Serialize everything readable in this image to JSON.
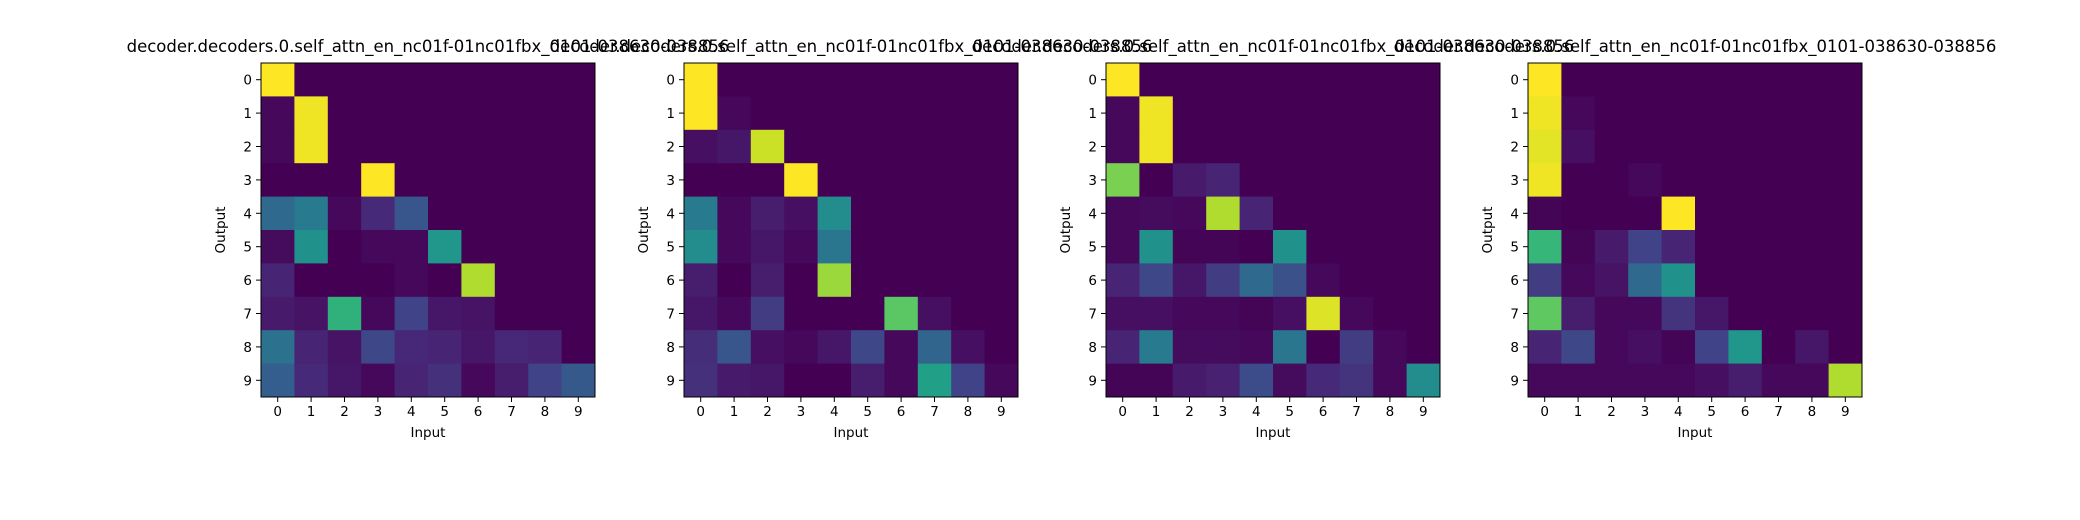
{
  "chart_data": [
    {
      "type": "heatmap",
      "title": "decoder.decoders.0.self_attn_en_nc01f-01nc01fbx_0101-038630-038856",
      "xlabel": "Input",
      "ylabel": "Output",
      "x_ticks": [
        "0",
        "1",
        "2",
        "3",
        "4",
        "5",
        "6",
        "7",
        "8",
        "9"
      ],
      "y_ticks": [
        "0",
        "1",
        "2",
        "3",
        "4",
        "5",
        "6",
        "7",
        "8",
        "9"
      ],
      "colormap": "viridis",
      "value_range": [
        0,
        1
      ],
      "values": [
        [
          1.0,
          0,
          0,
          0,
          0,
          0,
          0,
          0,
          0,
          0
        ],
        [
          0.02,
          0.98,
          0,
          0,
          0,
          0,
          0,
          0,
          0,
          0
        ],
        [
          0.02,
          0.98,
          0,
          0,
          0,
          0,
          0,
          0,
          0,
          0
        ],
        [
          0,
          0,
          0,
          1.0,
          0,
          0,
          0,
          0,
          0,
          0
        ],
        [
          0.35,
          0.42,
          0.02,
          0.12,
          0.27,
          0,
          0,
          0,
          0,
          0
        ],
        [
          0.03,
          0.5,
          0,
          0.02,
          0.02,
          0.52,
          0,
          0,
          0,
          0
        ],
        [
          0.1,
          0,
          0,
          0,
          0.02,
          0,
          0.88,
          0,
          0,
          0
        ],
        [
          0.07,
          0.05,
          0.64,
          0.02,
          0.2,
          0.06,
          0.05,
          0,
          0,
          0
        ],
        [
          0.38,
          0.1,
          0.05,
          0.22,
          0.11,
          0.1,
          0.06,
          0.11,
          0.1,
          0
        ],
        [
          0.3,
          0.12,
          0.06,
          0.02,
          0.1,
          0.14,
          0.02,
          0.08,
          0.2,
          0.28
        ]
      ]
    },
    {
      "type": "heatmap",
      "title": "decoder.decoders.0.self_attn_en_nc01f-01nc01fbx_0101-038630-038856",
      "xlabel": "Input",
      "ylabel": "Output",
      "x_ticks": [
        "0",
        "1",
        "2",
        "3",
        "4",
        "5",
        "6",
        "7",
        "8",
        "9"
      ],
      "y_ticks": [
        "0",
        "1",
        "2",
        "3",
        "4",
        "5",
        "6",
        "7",
        "8",
        "9"
      ],
      "colormap": "viridis",
      "value_range": [
        0,
        1
      ],
      "values": [
        [
          1.0,
          0,
          0,
          0,
          0,
          0,
          0,
          0,
          0,
          0
        ],
        [
          1.0,
          0.02,
          0,
          0,
          0,
          0,
          0,
          0,
          0,
          0
        ],
        [
          0.04,
          0.06,
          0.92,
          0,
          0,
          0,
          0,
          0,
          0,
          0
        ],
        [
          0,
          0,
          0,
          1.0,
          0,
          0,
          0,
          0,
          0,
          0
        ],
        [
          0.42,
          0.02,
          0.08,
          0.04,
          0.48,
          0,
          0,
          0,
          0,
          0
        ],
        [
          0.48,
          0.02,
          0.06,
          0.02,
          0.4,
          0,
          0,
          0,
          0,
          0
        ],
        [
          0.08,
          0,
          0.08,
          0,
          0.85,
          0,
          0,
          0,
          0,
          0
        ],
        [
          0.06,
          0.02,
          0.18,
          0,
          0,
          0,
          0.74,
          0.04,
          0,
          0
        ],
        [
          0.13,
          0.27,
          0.04,
          0.02,
          0.06,
          0.22,
          0.02,
          0.33,
          0.04,
          0
        ],
        [
          0.14,
          0.07,
          0.06,
          0,
          0,
          0.08,
          0.02,
          0.56,
          0.2,
          0.02
        ]
      ]
    },
    {
      "type": "heatmap",
      "title": "decoder.decoders.0.self_attn_en_nc01f-01nc01fbx_0101-038630-038856",
      "xlabel": "Input",
      "ylabel": "Output",
      "x_ticks": [
        "0",
        "1",
        "2",
        "3",
        "4",
        "5",
        "6",
        "7",
        "8",
        "9"
      ],
      "y_ticks": [
        "0",
        "1",
        "2",
        "3",
        "4",
        "5",
        "6",
        "7",
        "8",
        "9"
      ],
      "colormap": "viridis",
      "value_range": [
        0,
        1
      ],
      "values": [
        [
          1.0,
          0,
          0,
          0,
          0,
          0,
          0,
          0,
          0,
          0
        ],
        [
          0.02,
          0.98,
          0,
          0,
          0,
          0,
          0,
          0,
          0,
          0
        ],
        [
          0.02,
          0.98,
          0,
          0,
          0,
          0,
          0,
          0,
          0,
          0
        ],
        [
          0.8,
          0,
          0.07,
          0.1,
          0,
          0,
          0,
          0,
          0,
          0
        ],
        [
          0.02,
          0.03,
          0.02,
          0.88,
          0.1,
          0,
          0,
          0,
          0,
          0
        ],
        [
          0.02,
          0.5,
          0.01,
          0.01,
          0,
          0.5,
          0,
          0,
          0,
          0
        ],
        [
          0.1,
          0.22,
          0.06,
          0.18,
          0.35,
          0.25,
          0.02,
          0,
          0,
          0
        ],
        [
          0.04,
          0.04,
          0.02,
          0.02,
          0.01,
          0.04,
          0.95,
          0.02,
          0,
          0
        ],
        [
          0.1,
          0.42,
          0.03,
          0.03,
          0.02,
          0.4,
          0,
          0.18,
          0.02,
          0
        ],
        [
          0.01,
          0.01,
          0.07,
          0.09,
          0.23,
          0.03,
          0.12,
          0.15,
          0.02,
          0.48
        ]
      ]
    },
    {
      "type": "heatmap",
      "title": "decoder.decoders.0.self_attn_en_nc01f-01nc01fbx_0101-038630-038856",
      "xlabel": "Input",
      "ylabel": "Output",
      "x_ticks": [
        "0",
        "1",
        "2",
        "3",
        "4",
        "5",
        "6",
        "7",
        "8",
        "9"
      ],
      "y_ticks": [
        "0",
        "1",
        "2",
        "3",
        "4",
        "5",
        "6",
        "7",
        "8",
        "9"
      ],
      "colormap": "viridis",
      "value_range": [
        0,
        1
      ],
      "values": [
        [
          1.0,
          0,
          0,
          0,
          0,
          0,
          0,
          0,
          0,
          0
        ],
        [
          0.98,
          0.02,
          0,
          0,
          0,
          0,
          0,
          0,
          0,
          0
        ],
        [
          0.96,
          0.04,
          0,
          0,
          0,
          0,
          0,
          0,
          0,
          0
        ],
        [
          0.98,
          0,
          0,
          0.02,
          0,
          0,
          0,
          0,
          0,
          0
        ],
        [
          0.01,
          0,
          0,
          0,
          1.0,
          0,
          0,
          0,
          0,
          0
        ],
        [
          0.66,
          0.01,
          0.07,
          0.2,
          0.1,
          0,
          0,
          0,
          0,
          0
        ],
        [
          0.18,
          0.02,
          0.05,
          0.35,
          0.5,
          0,
          0,
          0,
          0,
          0
        ],
        [
          0.75,
          0.08,
          0.02,
          0.02,
          0.15,
          0.06,
          0,
          0,
          0,
          0
        ],
        [
          0.1,
          0.22,
          0.02,
          0.04,
          0.01,
          0.2,
          0.52,
          0,
          0.06,
          0
        ],
        [
          0.02,
          0.02,
          0.02,
          0.02,
          0.02,
          0.04,
          0.08,
          0.02,
          0.02,
          0.88
        ]
      ]
    }
  ]
}
